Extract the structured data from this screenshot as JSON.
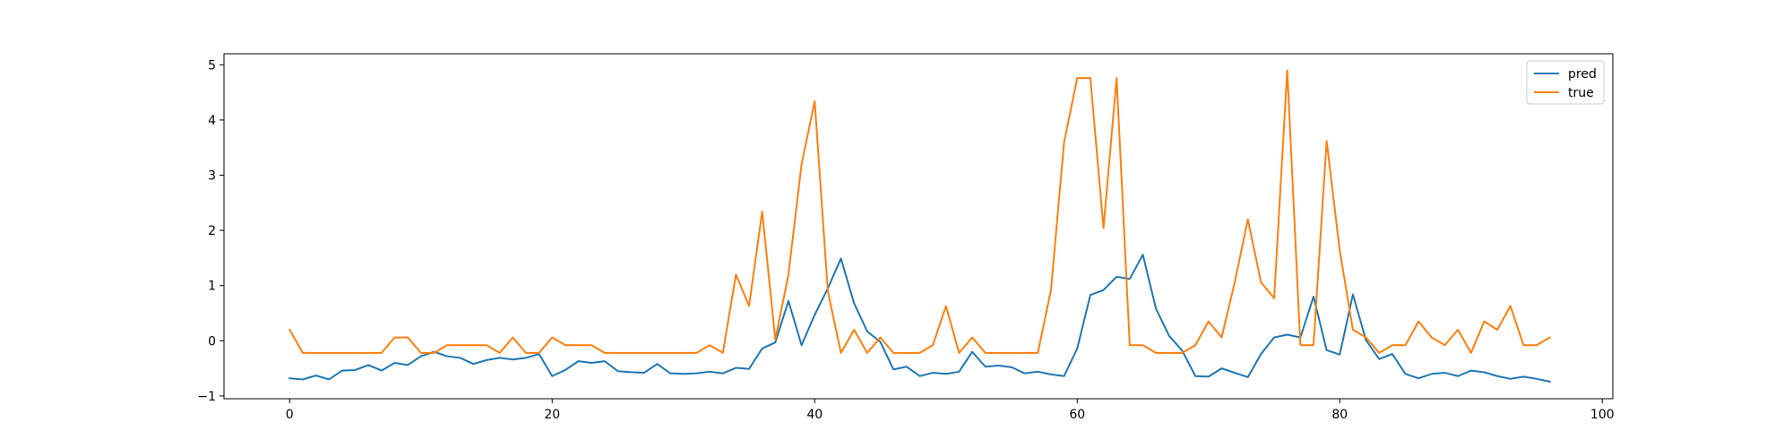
{
  "chart_data": {
    "type": "line",
    "title": "",
    "xlabel": "",
    "ylabel": "",
    "xlim": [
      -5,
      100.8
    ],
    "ylim": [
      -1.05,
      5.2
    ],
    "xticks": [
      0,
      20,
      40,
      60,
      80,
      100
    ],
    "yticks": [
      -1,
      0,
      1,
      2,
      3,
      4,
      5
    ],
    "grid": false,
    "legend_position": "top-right",
    "series": [
      {
        "name": "pred",
        "color": "#1f77b4",
        "x": [
          0,
          1,
          2,
          3,
          4,
          5,
          6,
          7,
          8,
          9,
          10,
          11,
          12,
          13,
          14,
          15,
          16,
          17,
          18,
          19,
          20,
          21,
          22,
          23,
          24,
          25,
          26,
          27,
          28,
          29,
          30,
          31,
          32,
          33,
          34,
          35,
          36,
          37,
          38,
          39,
          40,
          41,
          42,
          43,
          44,
          45,
          46,
          47,
          48,
          49,
          50,
          51,
          52,
          53,
          54,
          55,
          56,
          57,
          58,
          59,
          60,
          61,
          62,
          63,
          64,
          65,
          66,
          67,
          68,
          69,
          70,
          71,
          72,
          73,
          74,
          75,
          76,
          77,
          78,
          79,
          80,
          81,
          82,
          83,
          84,
          85,
          86,
          87,
          88,
          89,
          90,
          91,
          92,
          93,
          94,
          95,
          96
        ],
        "values": [
          -0.68,
          -0.7,
          -0.63,
          -0.7,
          -0.54,
          -0.53,
          -0.44,
          -0.54,
          -0.4,
          -0.44,
          -0.28,
          -0.2,
          -0.28,
          -0.31,
          -0.42,
          -0.35,
          -0.31,
          -0.34,
          -0.31,
          -0.24,
          -0.64,
          -0.53,
          -0.37,
          -0.4,
          -0.37,
          -0.55,
          -0.57,
          -0.58,
          -0.42,
          -0.59,
          -0.6,
          -0.59,
          -0.56,
          -0.59,
          -0.49,
          -0.51,
          -0.14,
          -0.03,
          0.72,
          -0.08,
          0.47,
          0.95,
          1.49,
          0.68,
          0.17,
          -0.02,
          -0.52,
          -0.47,
          -0.64,
          -0.58,
          -0.6,
          -0.56,
          -0.2,
          -0.47,
          -0.45,
          -0.48,
          -0.59,
          -0.56,
          -0.61,
          -0.64,
          -0.14,
          0.83,
          0.92,
          1.16,
          1.12,
          1.56,
          0.58,
          0.09,
          -0.18,
          -0.64,
          -0.65,
          -0.5,
          -0.58,
          -0.66,
          -0.24,
          0.06,
          0.11,
          0.06,
          0.8,
          -0.17,
          -0.25,
          0.84,
          0.01,
          -0.33,
          -0.24,
          -0.6,
          -0.68,
          -0.6,
          -0.58,
          -0.64,
          -0.54,
          -0.57,
          -0.64,
          -0.69,
          -0.65,
          -0.69,
          -0.74
        ]
      },
      {
        "name": "true",
        "color": "#ff7f0e",
        "x": [
          0,
          1,
          2,
          3,
          4,
          5,
          6,
          7,
          8,
          9,
          10,
          11,
          12,
          13,
          14,
          15,
          16,
          17,
          18,
          19,
          20,
          21,
          22,
          23,
          24,
          25,
          26,
          27,
          28,
          29,
          30,
          31,
          32,
          33,
          34,
          35,
          36,
          37,
          38,
          39,
          40,
          41,
          42,
          43,
          44,
          45,
          46,
          47,
          48,
          49,
          50,
          51,
          52,
          53,
          54,
          55,
          56,
          57,
          58,
          59,
          60,
          61,
          62,
          63,
          64,
          65,
          66,
          67,
          68,
          69,
          70,
          71,
          72,
          73,
          74,
          75,
          76,
          77,
          78,
          79,
          80,
          81,
          82,
          83,
          84,
          85,
          86,
          87,
          88,
          89,
          90,
          91,
          92,
          93,
          94,
          95,
          96
        ],
        "values": [
          0.2,
          -0.22,
          -0.22,
          -0.22,
          -0.22,
          -0.22,
          -0.22,
          -0.22,
          0.06,
          0.06,
          -0.22,
          -0.22,
          -0.08,
          -0.08,
          -0.08,
          -0.08,
          -0.22,
          0.06,
          -0.22,
          -0.22,
          0.06,
          -0.08,
          -0.08,
          -0.08,
          -0.22,
          -0.22,
          -0.22,
          -0.22,
          -0.22,
          -0.22,
          -0.22,
          -0.22,
          -0.08,
          -0.22,
          1.2,
          0.63,
          2.34,
          0.02,
          1.2,
          3.2,
          4.34,
          0.9,
          -0.22,
          0.2,
          -0.22,
          0.06,
          -0.22,
          -0.22,
          -0.22,
          -0.08,
          0.63,
          -0.22,
          0.06,
          -0.22,
          -0.22,
          -0.22,
          -0.22,
          -0.22,
          0.92,
          3.6,
          4.76,
          4.76,
          2.04,
          4.76,
          -0.08,
          -0.08,
          -0.22,
          -0.22,
          -0.22,
          -0.08,
          0.35,
          0.06,
          1.06,
          2.2,
          1.06,
          0.77,
          4.9,
          -0.08,
          -0.08,
          3.62,
          1.63,
          0.2,
          0.06,
          -0.22,
          -0.08,
          -0.08,
          0.35,
          0.06,
          -0.08,
          0.2,
          -0.22,
          0.35,
          0.2,
          0.63,
          -0.08,
          -0.08,
          0.06
        ]
      }
    ]
  }
}
